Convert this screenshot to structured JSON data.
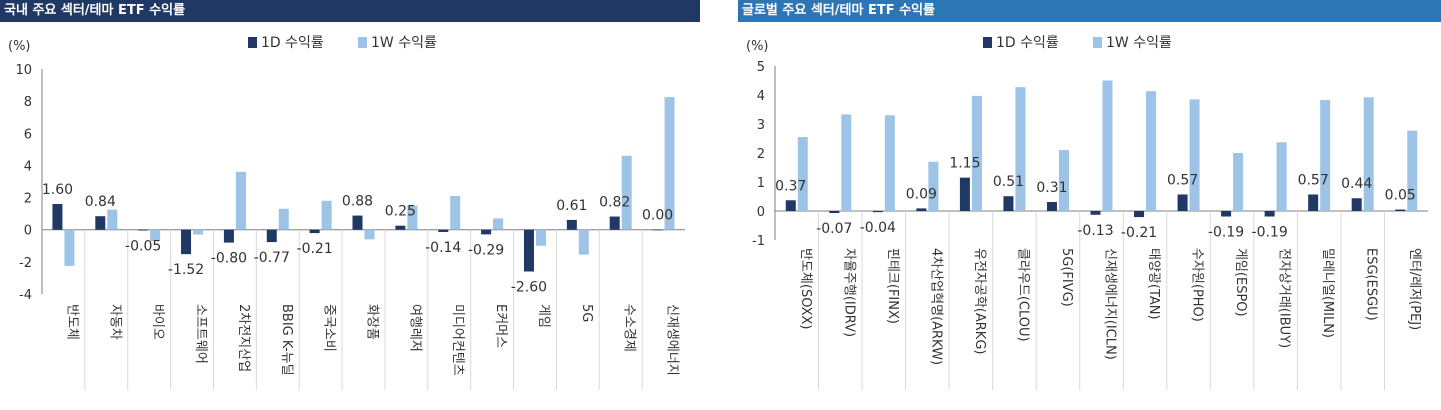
{
  "colors": {
    "d1": "#1f3864",
    "w1": "#9dc3e6",
    "axis": "#7f7f7f",
    "grid": "#d9d9d9"
  },
  "panels": [
    {
      "title": "국내 주요 섹터/테마 ETF 수익률",
      "unit": "(%)",
      "chart_data": {
        "type": "bar",
        "categories": [
          "반도체",
          "자동차",
          "바이오",
          "소프트웨어",
          "2차전지산업",
          "BBIG K-뉴딜",
          "중국소비",
          "화장품",
          "여행레저",
          "미디어컨텐츠",
          "E커머스",
          "게임",
          "5G",
          "수소경제",
          "신재생에너지"
        ],
        "series": [
          {
            "name": "1D 수익률",
            "values": [
              1.6,
              0.84,
              -0.05,
              -1.52,
              -0.8,
              -0.77,
              -0.21,
              0.88,
              0.25,
              -0.14,
              -0.29,
              -2.6,
              0.61,
              0.82,
              0.0
            ]
          },
          {
            "name": "1W 수익률",
            "values": [
              -2.25,
              1.25,
              -0.7,
              -0.3,
              3.6,
              1.3,
              1.8,
              -0.6,
              1.5,
              2.1,
              0.7,
              -1.0,
              -1.55,
              4.6,
              8.25
            ]
          }
        ],
        "labels": [
          "1.60",
          "0.84",
          "-0.05",
          "-1.52",
          "-0.80",
          "-0.77",
          "-0.21",
          "0.88",
          "0.25",
          "-0.14",
          "-0.29",
          "-2.60",
          "0.61",
          "0.82",
          "0.00"
        ],
        "yticks": [
          "10",
          "8",
          "6",
          "4",
          "2",
          "0",
          "-2",
          "-4"
        ],
        "ylim": [
          -4,
          10
        ],
        "legend": "top-center"
      }
    },
    {
      "title": "글로벌 주요 섹터/테마 ETF 수익률",
      "unit": "(%)",
      "chart_data": {
        "type": "bar",
        "categories": [
          "반도체(SOXX)",
          "자율주행(IDRV)",
          "핀테크(FINX)",
          "4차산업혁명(ARKW)",
          "유전자공학(ARKG)",
          "클라우드(CLOU)",
          "5G(FIVG)",
          "신재생에너지(ICLN)",
          "태양광(TAN)",
          "수자원(PHO)",
          "게임(ESPO)",
          "전자상거래(IBUY)",
          "밀레니얼(MILN)",
          "ESG(ESGU)",
          "엔터/레저(PEJ)"
        ],
        "series": [
          {
            "name": "1D 수익률",
            "values": [
              0.37,
              -0.07,
              -0.04,
              0.09,
              1.15,
              0.51,
              0.31,
              -0.13,
              -0.21,
              0.57,
              -0.19,
              -0.19,
              0.57,
              0.44,
              0.05
            ]
          },
          {
            "name": "1W 수익률",
            "values": [
              2.55,
              3.33,
              3.3,
              1.7,
              3.97,
              4.27,
              2.1,
              4.5,
              4.13,
              3.85,
              2.0,
              2.37,
              3.83,
              3.92,
              2.77
            ]
          }
        ],
        "labels": [
          "0.37",
          "-0.07",
          "-0.04",
          "0.09",
          "1.15",
          "0.51",
          "0.31",
          "-0.13",
          "-0.21",
          "0.57",
          "-0.19",
          "-0.19",
          "0.57",
          "0.44",
          "0.05"
        ],
        "yticks": [
          "5",
          "4",
          "3",
          "2",
          "1",
          "0",
          "-1"
        ],
        "ylim": [
          -1,
          5
        ],
        "legend": "top-center"
      }
    }
  ]
}
